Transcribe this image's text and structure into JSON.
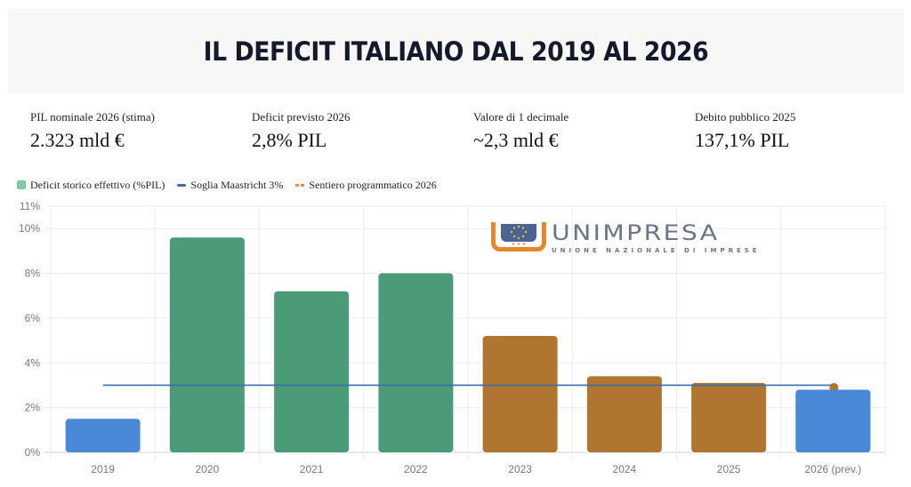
{
  "header": {
    "title": "IL DEFICIT ITALIANO DAL 2019 AL 2026"
  },
  "stats": [
    {
      "label": "PIL nominale 2026 (stima)",
      "value": "2.323 mld €"
    },
    {
      "label": "Deficit previsto 2026",
      "value": "2,8% PIL"
    },
    {
      "label": "Valore di 1 decimale",
      "value": "~2,3 mld €"
    },
    {
      "label": "Debito pubblico 2025",
      "value": "137,1% PIL"
    }
  ],
  "logo": {
    "name": "UNIMPRESA",
    "subtitle": "UNIONE NAZIONALE DI IMPRESE",
    "stars": "★ ★ ★"
  },
  "colors": {
    "green": "#4b9a78",
    "legend_green": "#7fcba4",
    "orange": "#b07530",
    "blue": "#4a88d8",
    "threshold_line": "#3b6ea5",
    "grid": "#ebebeb",
    "axis_text": "#777777"
  },
  "chart_data": {
    "type": "bar",
    "title": "",
    "xlabel": "",
    "ylabel": "",
    "ylim": [
      0,
      11
    ],
    "yticks": [
      0,
      2,
      4,
      6,
      8,
      10,
      11
    ],
    "ytick_labels": [
      "0%",
      "2%",
      "4%",
      "6%",
      "8%",
      "10%",
      "11%"
    ],
    "grid": true,
    "legend_position": "top-left",
    "categories": [
      "2019",
      "2020",
      "2021",
      "2022",
      "2023",
      "2024",
      "2025",
      "2026 (prev.)"
    ],
    "series": [
      {
        "name": "Deficit storico effettivo (%PIL)",
        "type": "bar",
        "values": [
          1.5,
          9.6,
          7.2,
          8.0,
          5.2,
          3.4,
          3.1,
          2.8
        ],
        "bar_colors": [
          "blue",
          "green",
          "green",
          "green",
          "orange",
          "orange",
          "orange",
          "blue"
        ]
      },
      {
        "name": "Soglia Maastricht 3%",
        "type": "line",
        "values": [
          3,
          3,
          3,
          3,
          3,
          3,
          3,
          3
        ]
      },
      {
        "name": "Sentiero programmatico 2026",
        "type": "line-dashed",
        "values": [
          null,
          null,
          null,
          null,
          null,
          null,
          null,
          2.9
        ]
      }
    ]
  }
}
